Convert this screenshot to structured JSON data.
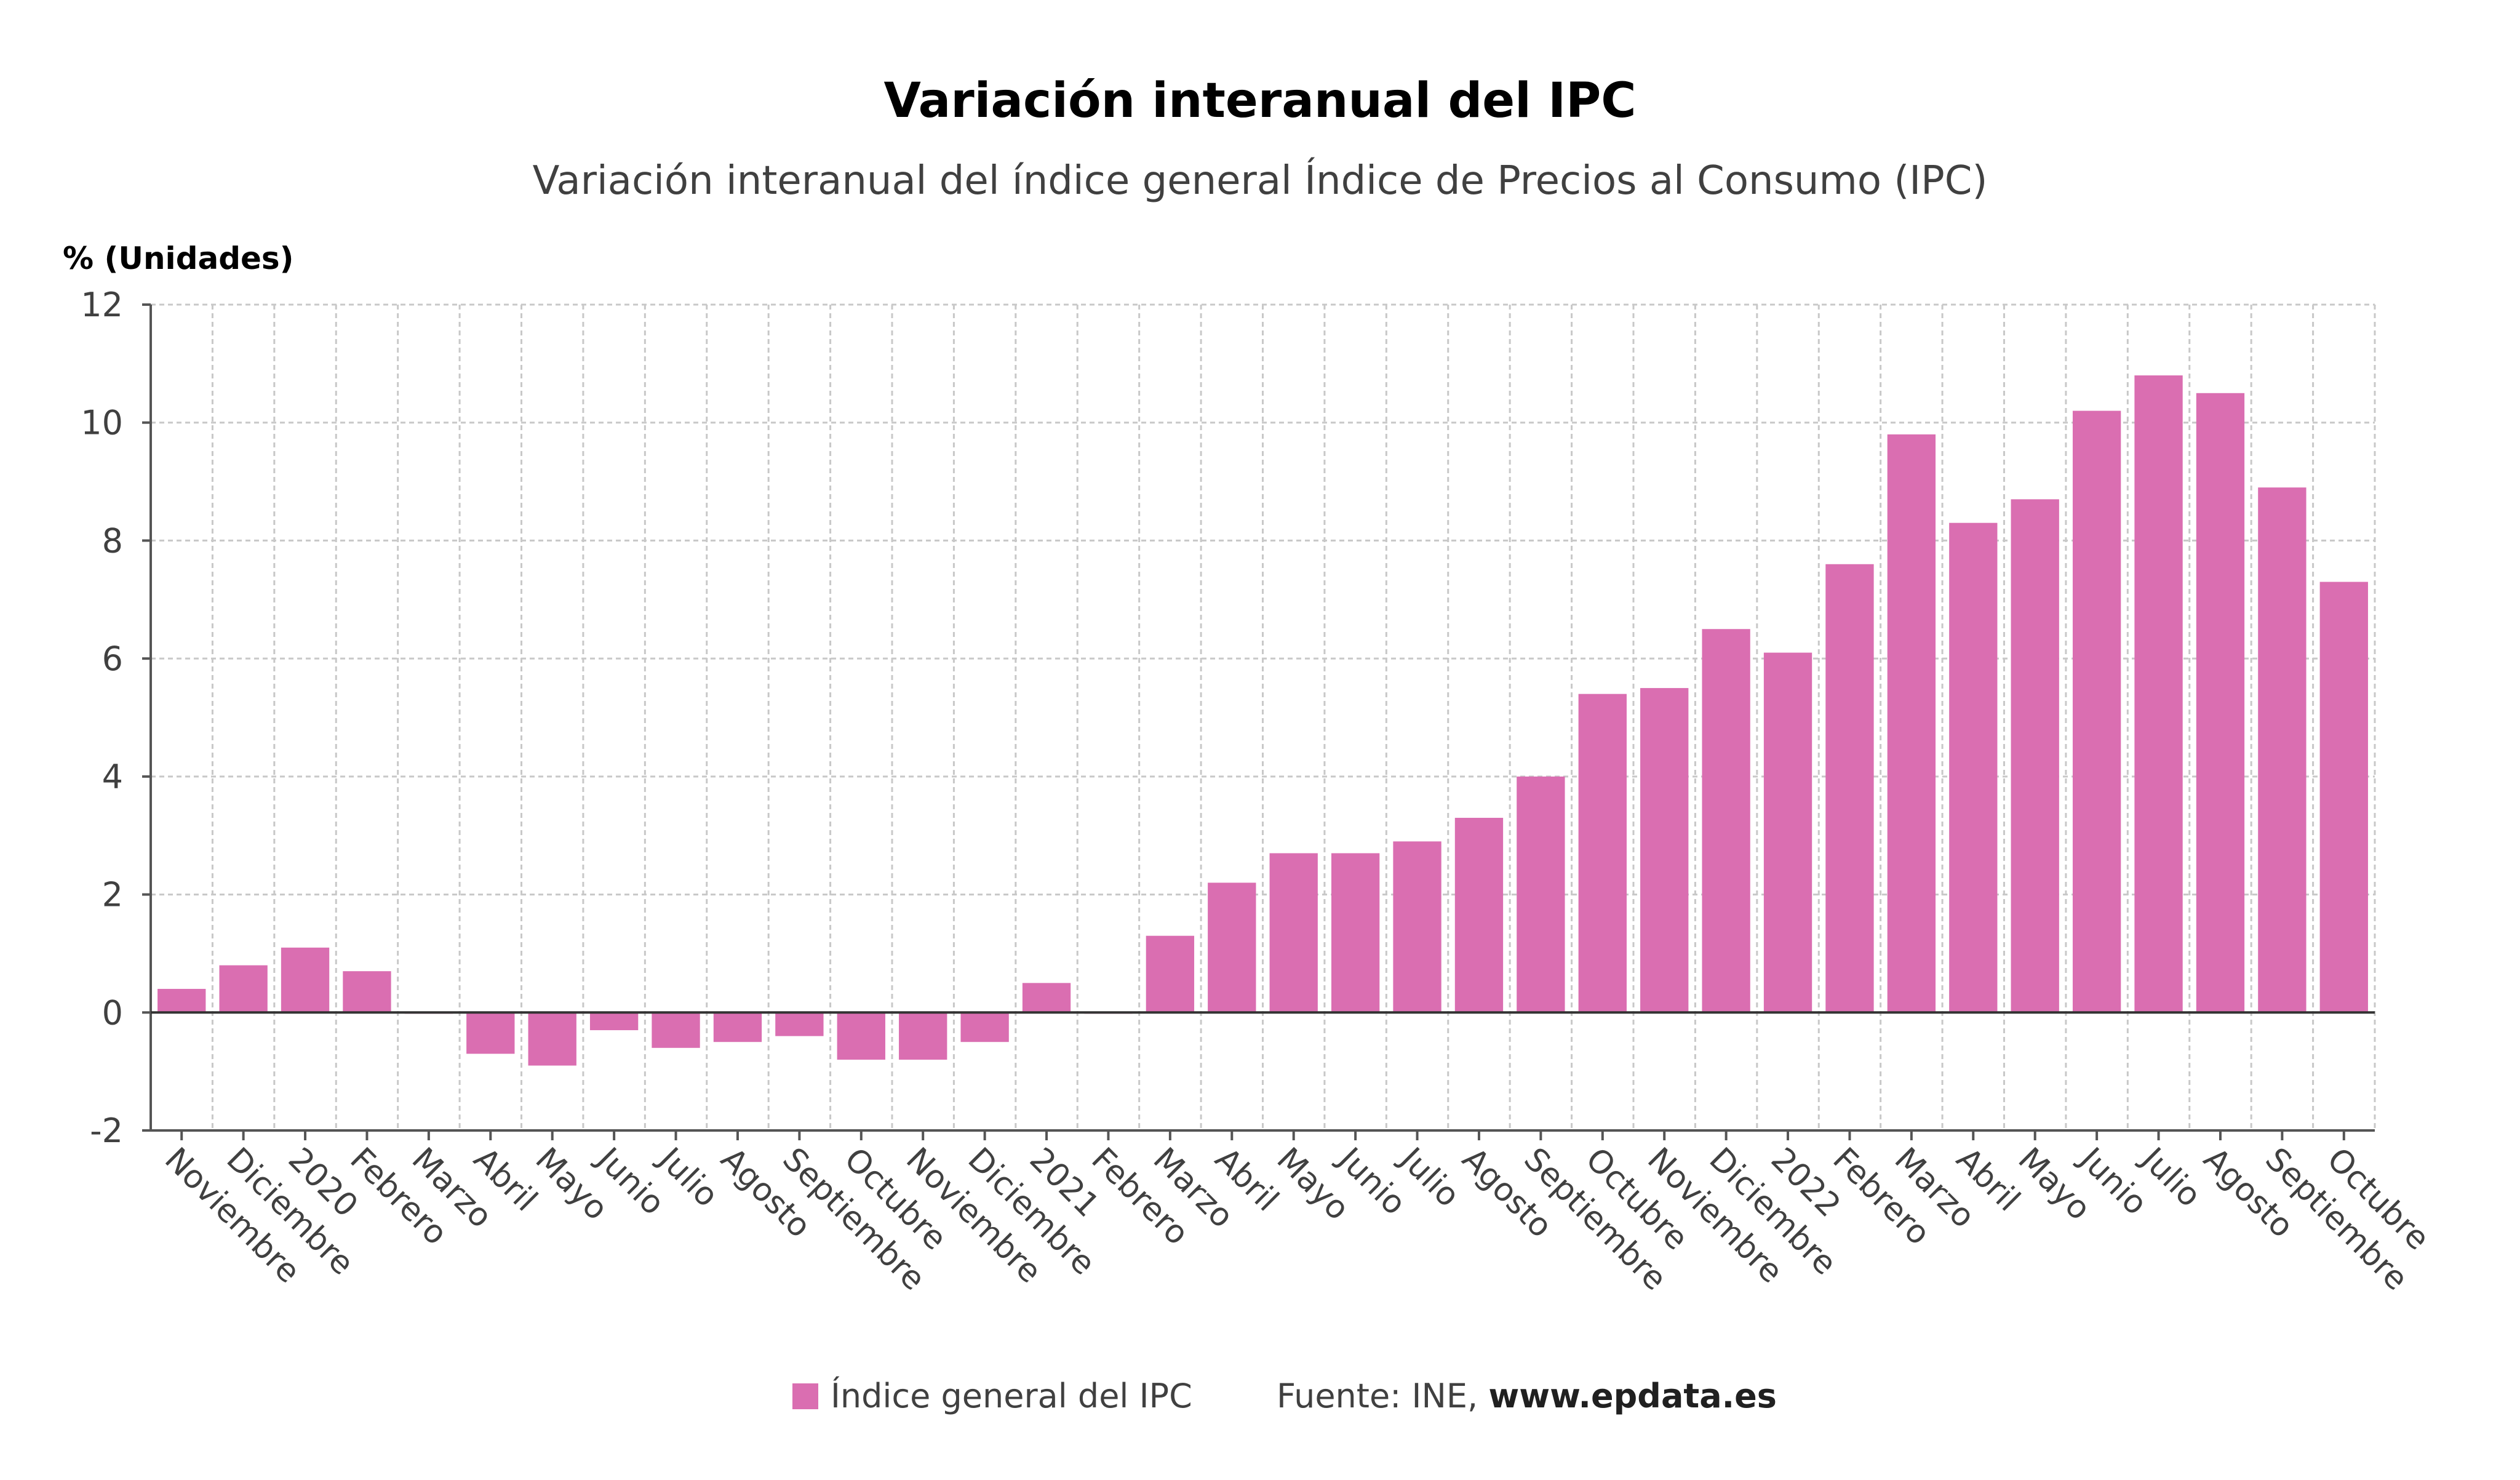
{
  "title": "Variación interanual del IPC",
  "subtitle": "Variación interanual del índice general Índice de Precios al Consumo (IPC)",
  "unit_label": "% (Unidades)",
  "legend": {
    "label": "Índice general del IPC"
  },
  "source": {
    "prefix": "Fuente: INE, ",
    "url": "www.epdata.es"
  },
  "colors": {
    "bar": "#da6eb1",
    "background": "#ffffff",
    "grid": "#c8c8c8"
  },
  "chart_data": {
    "type": "bar",
    "title": "Variación interanual del IPC",
    "subtitle": "Variación interanual del índice general Índice de Precios al Consumo (IPC)",
    "ylabel": "% (Unidades)",
    "xlabel": "",
    "ylim": [
      -2,
      12
    ],
    "yticks": [
      -2,
      0,
      2,
      4,
      6,
      8,
      10,
      12
    ],
    "grid": true,
    "legend_position": "bottom",
    "categories": [
      "Noviembre",
      "Diciembre",
      "2020",
      "Febrero",
      "Marzo",
      "Abril",
      "Mayo",
      "Junio",
      "Julio",
      "Agosto",
      "Septiembre",
      "Octubre",
      "Noviembre",
      "Diciembre",
      "2021",
      "Febrero",
      "Marzo",
      "Abril",
      "Mayo",
      "Junio",
      "Julio",
      "Agosto",
      "Septiembre",
      "Octubre",
      "Noviembre",
      "Diciembre",
      "2022",
      "Febrero",
      "Marzo",
      "Abril",
      "Mayo",
      "Junio",
      "Julio",
      "Agosto",
      "Septiembre",
      "Octubre"
    ],
    "series": [
      {
        "name": "Índice general del IPC",
        "values": [
          0.4,
          0.8,
          1.1,
          0.7,
          0.0,
          -0.7,
          -0.9,
          -0.3,
          -0.6,
          -0.5,
          -0.4,
          -0.8,
          -0.8,
          -0.5,
          0.5,
          0.0,
          1.3,
          2.2,
          2.7,
          2.7,
          2.9,
          3.3,
          4.0,
          5.4,
          5.5,
          6.5,
          6.1,
          7.6,
          9.8,
          8.3,
          8.7,
          10.2,
          10.8,
          10.5,
          8.9,
          7.3
        ]
      }
    ]
  }
}
